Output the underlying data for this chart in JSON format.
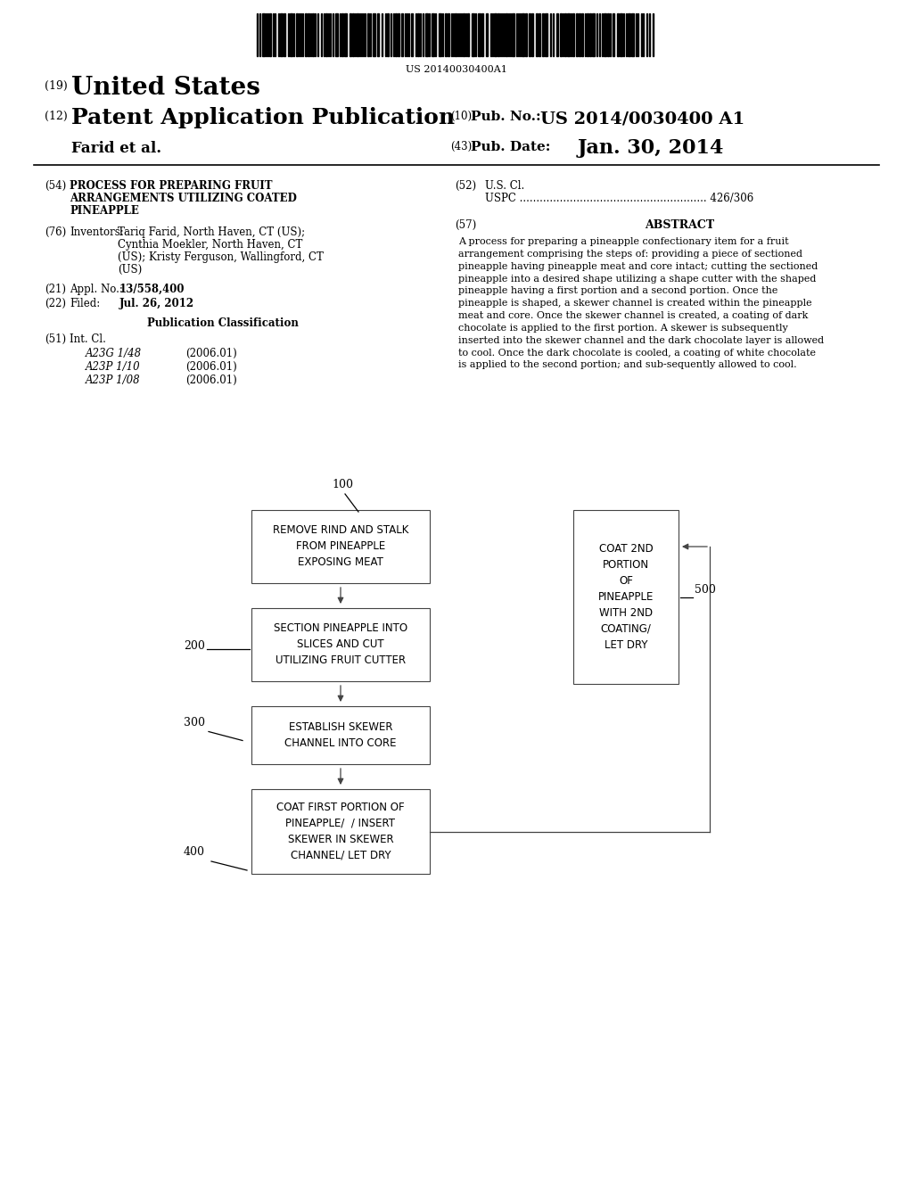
{
  "background_color": "#ffffff",
  "barcode_text": "US 20140030400A1",
  "header": {
    "num19": "(19)",
    "united_states": "United States",
    "num12": "(12)",
    "patent_app": "Patent Application Publication",
    "inventors_line": "Farid et al.",
    "num10": "(10)",
    "pub_no_label": "Pub. No.: ",
    "pub_no_val": "US 2014/0030400 A1",
    "num43": "(43)",
    "pub_date_label": "Pub. Date:",
    "pub_date_val": "Jan. 30, 2014"
  },
  "left_col": {
    "num54": "(54)",
    "title54_line1": "PROCESS FOR PREPARING FRUIT",
    "title54_line2": "ARRANGEMENTS UTILIZING COATED",
    "title54_line3": "PINEAPPLE",
    "num76": "(76)",
    "inventors_label": "Inventors:",
    "inv_line1": "Tariq Farid, North Haven, CT (US);",
    "inv_line2": "Cynthia Moekler, North Haven, CT",
    "inv_line3": "(US); Kristy Ferguson, Wallingford, CT",
    "inv_line4": "(US)",
    "num21": "(21)",
    "appl_label": "Appl. No.:",
    "appl_val": "13/558,400",
    "num22": "(22)",
    "filed_label": "Filed:",
    "filed_val": "Jul. 26, 2012",
    "pub_class_title": "Publication Classification",
    "num51": "(51)",
    "int_cl_label": "Int. Cl.",
    "int_cl_entries": [
      [
        "A23G 1/48",
        "(2006.01)"
      ],
      [
        "A23P 1/10",
        "(2006.01)"
      ],
      [
        "A23P 1/08",
        "(2006.01)"
      ]
    ]
  },
  "right_col": {
    "num52": "(52)",
    "us_cl_label": "U.S. Cl.",
    "uspc_line": "USPC ........................................................ 426/306",
    "num57": "(57)",
    "abstract_title": "ABSTRACT",
    "abstract_text": "A process for preparing a pineapple confectionary item for a fruit arrangement comprising the steps of: providing a piece of sectioned pineapple having pineapple meat and core intact; cutting the sectioned pineapple into a desired shape utilizing a shape cutter with the shaped pineapple having a first portion and a second portion. Once the pineapple is shaped, a skewer channel is created within the pineapple meat and core. Once the skewer channel is created, a coating of dark chocolate is applied to the first portion. A skewer is subsequently inserted into the skewer channel and the dark chocolate layer is allowed to cool. Once the dark chocolate is cooled, a coating of white chocolate is applied to the second portion; and sub-sequently allowed to cool."
  },
  "flowchart": {
    "box1": {
      "label": "REMOVE RIND AND STALK\nFROM PINEAPPLE\nEXPOSING MEAT",
      "num": "100"
    },
    "box2": {
      "label": "SECTION PINEAPPLE INTO\nSLICES AND CUT\nUTILIZING FRUIT CUTTER",
      "num": "200"
    },
    "box3": {
      "label": "ESTABLISH SKEWER\nCHANNEL INTO CORE",
      "num": "300"
    },
    "box4": {
      "label": "COAT FIRST PORTION OF\nPINEAPPLE/  / INSERT\nSKEWER IN SKEWER\nCHANNEL/ LET DRY",
      "num": "400"
    },
    "box5": {
      "label": "COAT 2ND\nPORTION\nOF\nPINEAPPLE\nWITH 2ND\nCOATING/\nLET DRY",
      "num": "500"
    }
  }
}
